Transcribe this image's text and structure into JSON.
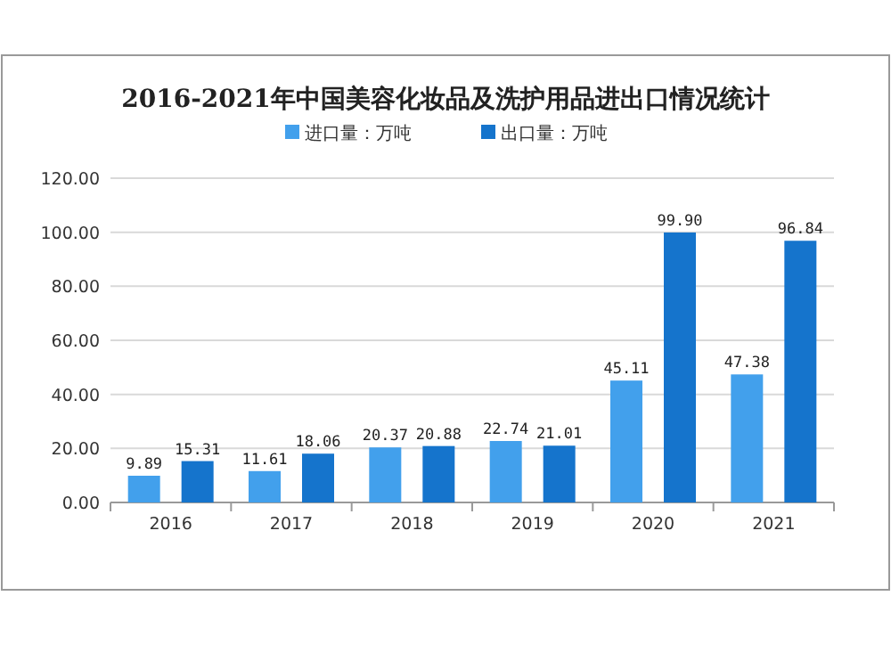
{
  "chart_data": {
    "type": "bar",
    "title": "2016-2021年中国美容化妆品及洗护用品进出口情况统计",
    "categories": [
      "2016",
      "2017",
      "2018",
      "2019",
      "2020",
      "2021"
    ],
    "series": [
      {
        "name": "进口量：万吨",
        "color": "#42a0ec",
        "values": [
          9.89,
          11.61,
          20.37,
          22.74,
          45.11,
          47.38
        ],
        "value_labels": [
          "9.89",
          "11.61",
          "20.37",
          "22.74",
          "45.11",
          "47.38"
        ]
      },
      {
        "name": "出口量：万吨",
        "color": "#1574cc",
        "values": [
          15.31,
          18.06,
          20.88,
          21.01,
          99.9,
          96.84
        ],
        "value_labels": [
          "15.31",
          "18.06",
          "20.88",
          "21.01",
          "99.90",
          "96.84"
        ]
      }
    ],
    "ylim": [
      0,
      120
    ],
    "yticks": [
      {
        "value": 0,
        "label": "0.00"
      },
      {
        "value": 20,
        "label": "20.00"
      },
      {
        "value": 40,
        "label": "40.00"
      },
      {
        "value": 60,
        "label": "60.00"
      },
      {
        "value": 80,
        "label": "80.00"
      },
      {
        "value": 100,
        "label": "100.00"
      },
      {
        "value": 120,
        "label": "120.00"
      }
    ],
    "grid": "y",
    "legend": "top"
  }
}
